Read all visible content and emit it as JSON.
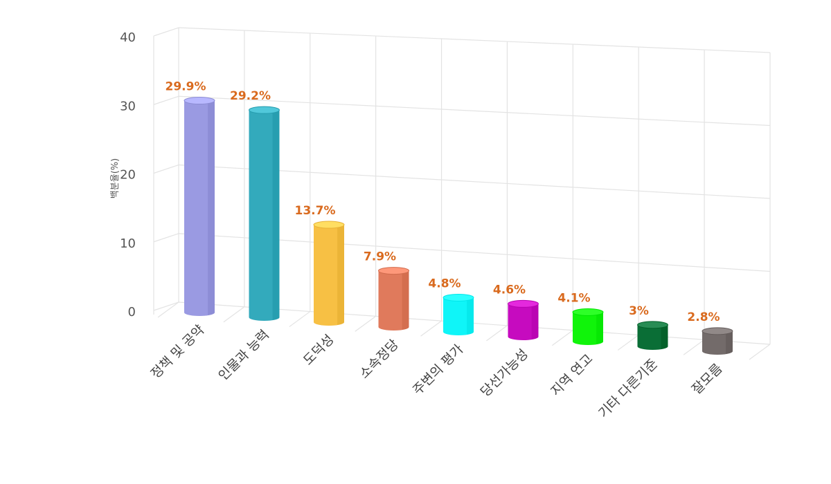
{
  "chart_data": {
    "type": "bar",
    "ylabel": "백분율(%)",
    "ylim": [
      0,
      40
    ],
    "yticks": [
      0,
      10,
      20,
      30,
      40
    ],
    "grid": true,
    "categories": [
      "정책 및 공약",
      "인물과 능력",
      "도덕성",
      "소속정당",
      "주변의 평가",
      "당선가능성",
      "지역 연고",
      "기타 다른기준",
      "잘모름"
    ],
    "values": [
      29.9,
      29.2,
      13.7,
      7.9,
      4.8,
      4.6,
      4.1,
      3,
      2.8
    ],
    "data_labels": [
      "29.9%",
      "29.2%",
      "13.7%",
      "7.9%",
      "4.8%",
      "4.6%",
      "4.1%",
      "3%",
      "2.8%"
    ],
    "colors": [
      "#9a9ae2",
      "#33aabc",
      "#f7c044",
      "#e07a5c",
      "#0ff5f8",
      "#c60bbf",
      "#10f40a",
      "#0a6e36",
      "#736b6a"
    ]
  }
}
